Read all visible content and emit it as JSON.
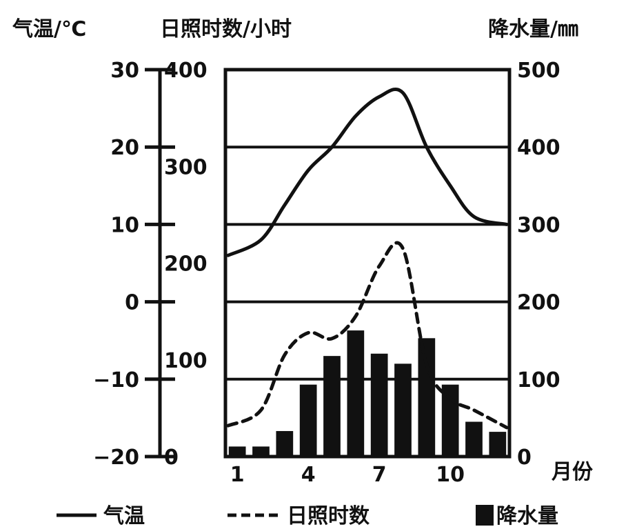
{
  "chart_data": {
    "type": "bar",
    "headers": {
      "temperature": "气温/℃",
      "sunshine": "日照时数/小时",
      "precipitation": "降水量/㎜"
    },
    "x": {
      "categories": [
        1,
        2,
        3,
        4,
        5,
        6,
        7,
        8,
        9,
        10,
        11,
        12
      ],
      "tick_labels": [
        "1",
        "4",
        "7",
        "10"
      ],
      "label": "月份"
    },
    "axes": {
      "temperature": {
        "range": [
          -20,
          30
        ],
        "ticks": [
          "30",
          "20",
          "10",
          "0",
          "−10",
          "−20"
        ]
      },
      "sunshine": {
        "range": [
          0,
          400
        ],
        "ticks": [
          "400",
          "300",
          "200",
          "100",
          "0"
        ]
      },
      "precipitation": {
        "range": [
          0,
          500
        ],
        "ticks": [
          "500",
          "400",
          "300",
          "200",
          "100",
          "0"
        ]
      }
    },
    "grid": true,
    "series": [
      {
        "name": "气温",
        "type": "line",
        "style": "solid",
        "axis": "temperature",
        "values": [
          6,
          8,
          12.5,
          17,
          20,
          24,
          26.5,
          27,
          20,
          15,
          11,
          10
        ]
      },
      {
        "name": "日照时数",
        "type": "line",
        "style": "dashed",
        "axis": "sunshine",
        "values": [
          32,
          48,
          105,
          128,
          122,
          145,
          197,
          215,
          95,
          60,
          48,
          30
        ]
      },
      {
        "name": "降水量",
        "type": "bar",
        "axis": "precipitation",
        "values": [
          13,
          13,
          33,
          93,
          130,
          163,
          133,
          120,
          153,
          93,
          45,
          32
        ]
      }
    ],
    "legend": [
      {
        "label": "气温",
        "kind": "solid-line"
      },
      {
        "label": "日照时数",
        "kind": "dashed-line"
      },
      {
        "label": "降水量",
        "kind": "bar"
      }
    ],
    "legend_position": "bottom"
  }
}
